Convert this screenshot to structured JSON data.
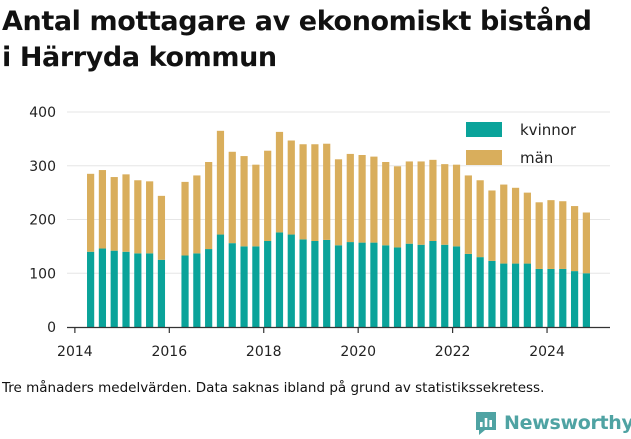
{
  "title_line1": "Antal mottagare av ekonomiskt bistånd",
  "title_line2": "i Härryda kommun",
  "caption": "Tre månaders medelvärden. Data saknas ibland på grund av statistikssekretess.",
  "brand": "Newsworthy",
  "colors": {
    "kvinnor": "#0aa39a",
    "man": "#d9ae5c",
    "axis": "#333333",
    "grid": "#e6e6e6",
    "brand": "#4fa3a3"
  },
  "chart_data": {
    "type": "bar",
    "stacked": true,
    "x_ticks": [
      "2014",
      "2016",
      "2018",
      "2020",
      "2022",
      "2024"
    ],
    "y_ticks": [
      "0",
      "100",
      "200",
      "300",
      "400"
    ],
    "xlim": [
      "2013-11",
      "2025-05"
    ],
    "ylim": [
      0,
      400
    ],
    "grid": "horizontal",
    "legend_position": "top-right",
    "categories": [
      "2014-05",
      "2014-08",
      "2014-11",
      "2015-02",
      "2015-05",
      "2015-08",
      "2015-11",
      "2016-05",
      "2016-08",
      "2016-11",
      "2017-02",
      "2017-05",
      "2017-08",
      "2017-11",
      "2018-02",
      "2018-05",
      "2018-08",
      "2018-11",
      "2019-02",
      "2019-05",
      "2019-08",
      "2019-11",
      "2020-02",
      "2020-05",
      "2020-08",
      "2020-11",
      "2021-02",
      "2021-05",
      "2021-08",
      "2021-11",
      "2022-02",
      "2022-05",
      "2022-08",
      "2022-11",
      "2023-02",
      "2023-05",
      "2023-08",
      "2023-11",
      "2024-02",
      "2024-05",
      "2024-08",
      "2024-11"
    ],
    "series": [
      {
        "name": "kvinnor",
        "values": [
          140,
          146,
          142,
          140,
          137,
          137,
          125,
          133,
          137,
          145,
          172,
          156,
          150,
          150,
          160,
          176,
          172,
          163,
          160,
          162,
          152,
          158,
          157,
          157,
          152,
          148,
          155,
          153,
          160,
          153,
          150,
          136,
          130,
          123,
          118,
          118,
          118,
          108,
          108,
          108,
          104,
          100
        ]
      },
      {
        "name": "män",
        "values": [
          145,
          146,
          137,
          144,
          136,
          134,
          119,
          137,
          145,
          162,
          193,
          170,
          168,
          152,
          168,
          187,
          175,
          177,
          180,
          179,
          160,
          164,
          163,
          160,
          155,
          151,
          153,
          155,
          151,
          150,
          152,
          146,
          143,
          131,
          147,
          141,
          132,
          124,
          128,
          126,
          121,
          113
        ]
      }
    ]
  }
}
